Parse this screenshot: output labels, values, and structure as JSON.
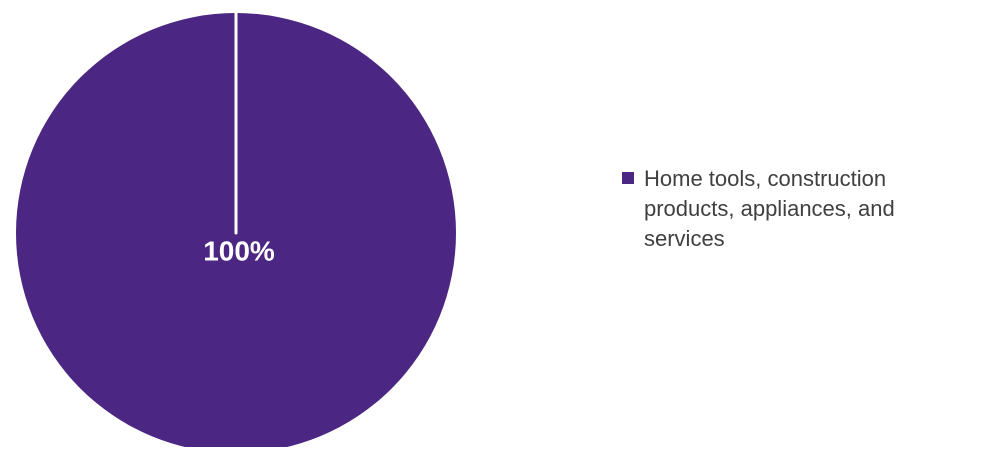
{
  "chart_data": {
    "type": "pie",
    "title": "",
    "slices": [
      {
        "label": "Home tools, construction products, appliances, and services",
        "value": 100,
        "data_label": "100%",
        "color": "#4b2682"
      }
    ],
    "legend_position": "right"
  },
  "colors": {
    "background": "#ffffff",
    "slice_divider": "#ffffff",
    "data_label_text": "#ffffff",
    "legend_text": "#404040"
  }
}
